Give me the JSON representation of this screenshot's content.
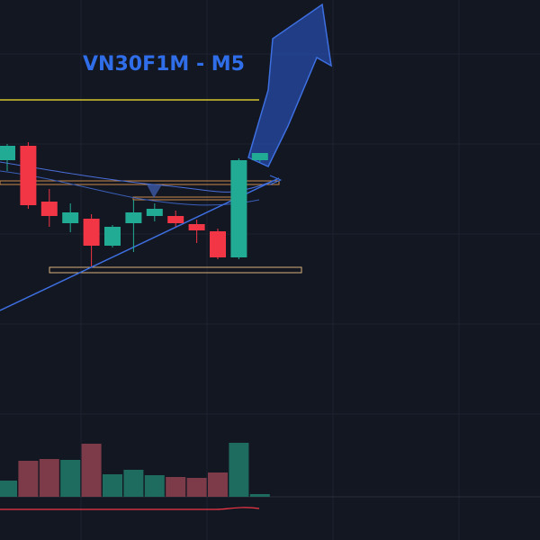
{
  "chart_data": {
    "type": "candlestick",
    "title": "VN30F1M - M5",
    "open": [
      422,
      438,
      376,
      352,
      357,
      327,
      352,
      360,
      360,
      351,
      343,
      314,
      422
    ],
    "high": [
      440,
      442,
      390,
      374,
      362,
      350,
      378,
      374,
      366,
      356,
      346,
      424,
      430
    ],
    "low": [
      410,
      368,
      348,
      342,
      304,
      325,
      320,
      354,
      348,
      330,
      312,
      312,
      420
    ],
    "close": [
      438,
      372,
      360,
      364,
      327,
      348,
      364,
      368,
      352,
      344,
      314,
      422,
      430
    ],
    "volume": [
      18,
      40,
      42,
      41,
      59,
      25,
      30,
      24,
      22,
      21,
      27,
      60,
      3
    ],
    "up_color": "#22ab94",
    "down_color": "#f23645",
    "volume_up_color": "#1e6b5f",
    "volume_down_color": "#7d3a48",
    "ylim": [
      0,
      600
    ],
    "volume_ylim": [
      0,
      100
    ]
  }
}
